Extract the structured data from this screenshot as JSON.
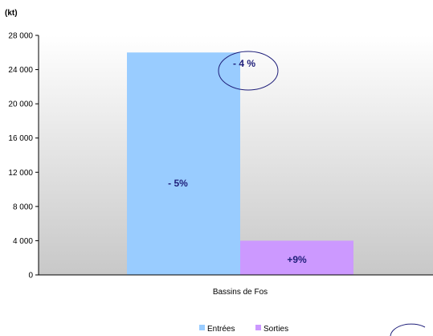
{
  "chart_data": {
    "type": "bar",
    "unit_label": "(kt)",
    "categories": [
      "Bassins de Fos"
    ],
    "series": [
      {
        "name": "Entrées",
        "values": [
          26000
        ],
        "color": "#99ccff",
        "label": "- 5%"
      },
      {
        "name": "Sorties",
        "values": [
          4000
        ],
        "color": "#cc99ff",
        "label": "+9%"
      }
    ],
    "total_annotation": "- 4 %",
    "ylim": [
      0,
      28000
    ],
    "yticks": [
      0,
      4000,
      8000,
      12000,
      16000,
      20000,
      24000,
      28000
    ],
    "ytick_labels": [
      "0",
      "4 000",
      "8 000",
      "12 000",
      "16 000",
      "20 000",
      "24 000",
      "28 000"
    ],
    "legend_position": "bottom-center",
    "plot_background": "gradient grey to white",
    "grid": false
  }
}
